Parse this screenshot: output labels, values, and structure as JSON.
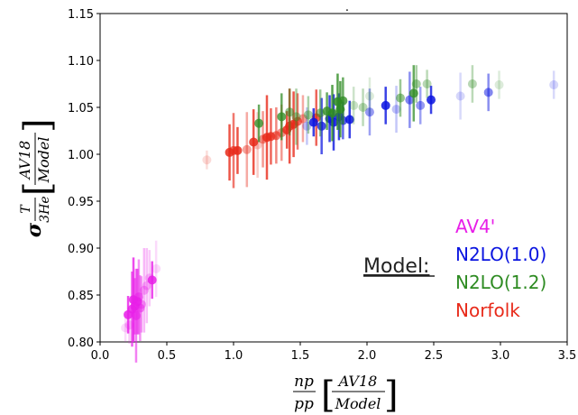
{
  "chart_data": {
    "type": "scatter",
    "title": ".",
    "xlabel": {
      "frac_top": "np",
      "frac_bottom": "pp",
      "bracket_top": "AV18",
      "bracket_bottom": "Model"
    },
    "ylabel": {
      "sigma": "σ",
      "sub_top": "T",
      "sub_bottom": "3He",
      "bracket_top": "AV18",
      "bracket_bottom": "Model"
    },
    "xlim": [
      0.0,
      3.5
    ],
    "ylim": [
      0.8,
      1.15
    ],
    "x_ticks": [
      "0.0",
      "0.5",
      "1.0",
      "1.5",
      "2.0",
      "2.5",
      "3.0",
      "3.5"
    ],
    "y_ticks": [
      "0.80",
      "0.85",
      "0.90",
      "0.95",
      "1.00",
      "1.05",
      "1.10",
      "1.15"
    ],
    "grid": false,
    "legend": {
      "title": "Model:",
      "placement": "bottom-right",
      "entries": [
        {
          "label": "AV4'",
          "color": "#e81ee8"
        },
        {
          "label": "N2LO(1.0)",
          "color": "#0a14e0"
        },
        {
          "label": "N2LO(1.2)",
          "color": "#2e8b22"
        },
        {
          "label": "Norfolk",
          "color": "#e82a1a"
        }
      ]
    },
    "series": [
      {
        "name": "AV4'",
        "color": "#e81ee8",
        "points": [
          {
            "x": 0.21,
            "y": 0.829,
            "err": 0.02,
            "alpha": 1.0
          },
          {
            "x": 0.24,
            "y": 0.835,
            "err": 0.04,
            "alpha": 0.9
          },
          {
            "x": 0.25,
            "y": 0.845,
            "err": 0.045,
            "alpha": 1.0
          },
          {
            "x": 0.26,
            "y": 0.838,
            "err": 0.03,
            "alpha": 0.8
          },
          {
            "x": 0.28,
            "y": 0.843,
            "err": 0.035,
            "alpha": 0.9
          },
          {
            "x": 0.29,
            "y": 0.848,
            "err": 0.04,
            "alpha": 0.6
          },
          {
            "x": 0.31,
            "y": 0.84,
            "err": 0.03,
            "alpha": 0.5
          },
          {
            "x": 0.33,
            "y": 0.855,
            "err": 0.045,
            "alpha": 0.4
          },
          {
            "x": 0.35,
            "y": 0.86,
            "err": 0.04,
            "alpha": 0.35
          },
          {
            "x": 0.37,
            "y": 0.868,
            "err": 0.03,
            "alpha": 0.3
          },
          {
            "x": 0.39,
            "y": 0.866,
            "err": 0.02,
            "alpha": 1.0
          },
          {
            "x": 0.42,
            "y": 0.878,
            "err": 0.03,
            "alpha": 0.2
          },
          {
            "x": 0.22,
            "y": 0.818,
            "err": 0.02,
            "alpha": 0.3
          },
          {
            "x": 0.19,
            "y": 0.815,
            "err": 0.015,
            "alpha": 0.2
          },
          {
            "x": 0.27,
            "y": 0.828,
            "err": 0.05,
            "alpha": 0.7
          },
          {
            "x": 0.3,
            "y": 0.836,
            "err": 0.035,
            "alpha": 0.6
          }
        ]
      },
      {
        "name": "Norfolk",
        "color": "#e82a1a",
        "points": [
          {
            "x": 0.8,
            "y": 0.994,
            "err": 0.01,
            "alpha": 0.2
          },
          {
            "x": 0.97,
            "y": 1.002,
            "err": 0.03,
            "alpha": 1.0
          },
          {
            "x": 1.0,
            "y": 1.004,
            "err": 0.04,
            "alpha": 0.8
          },
          {
            "x": 1.03,
            "y": 1.004,
            "err": 0.025,
            "alpha": 1.0
          },
          {
            "x": 1.1,
            "y": 1.005,
            "err": 0.04,
            "alpha": 0.5
          },
          {
            "x": 1.15,
            "y": 1.013,
            "err": 0.035,
            "alpha": 1.0
          },
          {
            "x": 1.22,
            "y": 1.016,
            "err": 0.03,
            "alpha": 0.6
          },
          {
            "x": 1.25,
            "y": 1.018,
            "err": 0.045,
            "alpha": 1.0
          },
          {
            "x": 1.28,
            "y": 1.019,
            "err": 0.03,
            "alpha": 0.9
          },
          {
            "x": 1.32,
            "y": 1.02,
            "err": 0.03,
            "alpha": 0.7
          },
          {
            "x": 1.36,
            "y": 1.023,
            "err": 0.03,
            "alpha": 0.6
          },
          {
            "x": 1.4,
            "y": 1.026,
            "err": 0.02,
            "alpha": 1.0
          },
          {
            "x": 1.42,
            "y": 1.03,
            "err": 0.04,
            "alpha": 1.0
          },
          {
            "x": 1.45,
            "y": 1.032,
            "err": 0.035,
            "alpha": 1.0
          },
          {
            "x": 1.48,
            "y": 1.035,
            "err": 0.03,
            "alpha": 0.8
          },
          {
            "x": 1.52,
            "y": 1.038,
            "err": 0.025,
            "alpha": 0.5
          },
          {
            "x": 1.62,
            "y": 1.039,
            "err": 0.03,
            "alpha": 0.9
          },
          {
            "x": 1.18,
            "y": 1.01,
            "err": 0.035,
            "alpha": 0.3
          }
        ]
      },
      {
        "name": "N2LO(1.0)",
        "color": "#0a14e0",
        "points": [
          {
            "x": 1.6,
            "y": 1.034,
            "err": 0.015,
            "alpha": 1.0
          },
          {
            "x": 1.66,
            "y": 1.03,
            "err": 0.03,
            "alpha": 0.9
          },
          {
            "x": 1.72,
            "y": 1.038,
            "err": 0.025,
            "alpha": 1.0
          },
          {
            "x": 1.75,
            "y": 1.034,
            "err": 0.03,
            "alpha": 1.0
          },
          {
            "x": 1.79,
            "y": 1.04,
            "err": 0.025,
            "alpha": 1.0
          },
          {
            "x": 1.82,
            "y": 1.036,
            "err": 0.02,
            "alpha": 0.8
          },
          {
            "x": 1.87,
            "y": 1.037,
            "err": 0.02,
            "alpha": 1.0
          },
          {
            "x": 2.02,
            "y": 1.045,
            "err": 0.025,
            "alpha": 0.5
          },
          {
            "x": 2.14,
            "y": 1.052,
            "err": 0.02,
            "alpha": 1.0
          },
          {
            "x": 2.22,
            "y": 1.048,
            "err": 0.025,
            "alpha": 0.3
          },
          {
            "x": 2.32,
            "y": 1.058,
            "err": 0.03,
            "alpha": 0.6
          },
          {
            "x": 2.4,
            "y": 1.052,
            "err": 0.02,
            "alpha": 0.5
          },
          {
            "x": 2.48,
            "y": 1.058,
            "err": 0.015,
            "alpha": 1.0
          },
          {
            "x": 2.7,
            "y": 1.062,
            "err": 0.025,
            "alpha": 0.2
          },
          {
            "x": 2.91,
            "y": 1.066,
            "err": 0.02,
            "alpha": 0.6
          },
          {
            "x": 3.4,
            "y": 1.074,
            "err": 0.015,
            "alpha": 0.2
          },
          {
            "x": 1.55,
            "y": 1.03,
            "err": 0.02,
            "alpha": 0.3
          }
        ]
      },
      {
        "name": "N2LO(1.2)",
        "color": "#2e8b22",
        "points": [
          {
            "x": 1.19,
            "y": 1.033,
            "err": 0.02,
            "alpha": 0.9
          },
          {
            "x": 1.36,
            "y": 1.04,
            "err": 0.025,
            "alpha": 0.9
          },
          {
            "x": 1.42,
            "y": 1.045,
            "err": 0.025,
            "alpha": 0.6
          },
          {
            "x": 1.47,
            "y": 1.04,
            "err": 0.03,
            "alpha": 0.5
          },
          {
            "x": 1.56,
            "y": 1.042,
            "err": 0.02,
            "alpha": 0.5
          },
          {
            "x": 1.65,
            "y": 1.044,
            "err": 0.025,
            "alpha": 0.6
          },
          {
            "x": 1.7,
            "y": 1.046,
            "err": 0.02,
            "alpha": 0.9
          },
          {
            "x": 1.74,
            "y": 1.044,
            "err": 0.03,
            "alpha": 1.0
          },
          {
            "x": 1.78,
            "y": 1.056,
            "err": 0.03,
            "alpha": 1.0
          },
          {
            "x": 1.8,
            "y": 1.048,
            "err": 0.03,
            "alpha": 1.0
          },
          {
            "x": 1.82,
            "y": 1.057,
            "err": 0.025,
            "alpha": 0.9
          },
          {
            "x": 1.97,
            "y": 1.05,
            "err": 0.02,
            "alpha": 0.4
          },
          {
            "x": 2.02,
            "y": 1.062,
            "err": 0.02,
            "alpha": 0.2
          },
          {
            "x": 2.25,
            "y": 1.06,
            "err": 0.02,
            "alpha": 0.6
          },
          {
            "x": 2.35,
            "y": 1.065,
            "err": 0.03,
            "alpha": 0.9
          },
          {
            "x": 2.37,
            "y": 1.075,
            "err": 0.02,
            "alpha": 0.5
          },
          {
            "x": 2.45,
            "y": 1.075,
            "err": 0.015,
            "alpha": 0.4
          },
          {
            "x": 2.79,
            "y": 1.075,
            "err": 0.02,
            "alpha": 0.4
          },
          {
            "x": 2.99,
            "y": 1.074,
            "err": 0.015,
            "alpha": 0.2
          },
          {
            "x": 1.9,
            "y": 1.052,
            "err": 0.02,
            "alpha": 0.3
          }
        ]
      }
    ]
  }
}
